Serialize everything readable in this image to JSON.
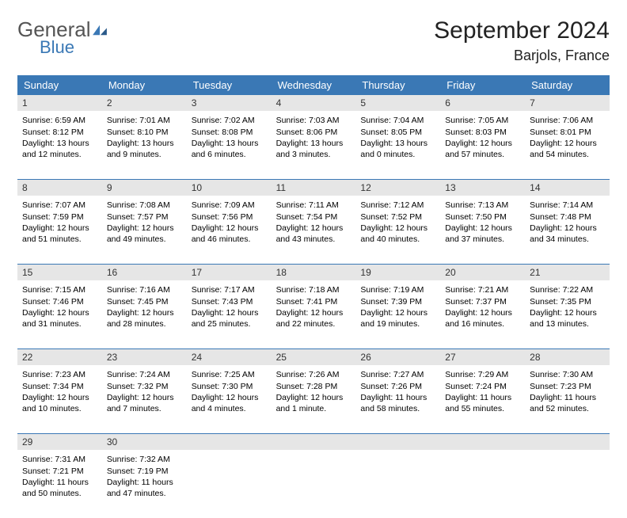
{
  "logo": {
    "general": "General",
    "blue": "Blue"
  },
  "title": "September 2024",
  "location": "Barjols, France",
  "colors": {
    "header_bg": "#3a78b5",
    "header_text": "#ffffff",
    "daynum_bg": "#e6e6e6",
    "week_border": "#3a78b5",
    "page_bg": "#ffffff",
    "text": "#000000"
  },
  "weekdays": [
    "Sunday",
    "Monday",
    "Tuesday",
    "Wednesday",
    "Thursday",
    "Friday",
    "Saturday"
  ],
  "days": [
    {
      "n": "1",
      "sr": "6:59 AM",
      "ss": "8:12 PM",
      "dl": "13 hours and 12 minutes."
    },
    {
      "n": "2",
      "sr": "7:01 AM",
      "ss": "8:10 PM",
      "dl": "13 hours and 9 minutes."
    },
    {
      "n": "3",
      "sr": "7:02 AM",
      "ss": "8:08 PM",
      "dl": "13 hours and 6 minutes."
    },
    {
      "n": "4",
      "sr": "7:03 AM",
      "ss": "8:06 PM",
      "dl": "13 hours and 3 minutes."
    },
    {
      "n": "5",
      "sr": "7:04 AM",
      "ss": "8:05 PM",
      "dl": "13 hours and 0 minutes."
    },
    {
      "n": "6",
      "sr": "7:05 AM",
      "ss": "8:03 PM",
      "dl": "12 hours and 57 minutes."
    },
    {
      "n": "7",
      "sr": "7:06 AM",
      "ss": "8:01 PM",
      "dl": "12 hours and 54 minutes."
    },
    {
      "n": "8",
      "sr": "7:07 AM",
      "ss": "7:59 PM",
      "dl": "12 hours and 51 minutes."
    },
    {
      "n": "9",
      "sr": "7:08 AM",
      "ss": "7:57 PM",
      "dl": "12 hours and 49 minutes."
    },
    {
      "n": "10",
      "sr": "7:09 AM",
      "ss": "7:56 PM",
      "dl": "12 hours and 46 minutes."
    },
    {
      "n": "11",
      "sr": "7:11 AM",
      "ss": "7:54 PM",
      "dl": "12 hours and 43 minutes."
    },
    {
      "n": "12",
      "sr": "7:12 AM",
      "ss": "7:52 PM",
      "dl": "12 hours and 40 minutes."
    },
    {
      "n": "13",
      "sr": "7:13 AM",
      "ss": "7:50 PM",
      "dl": "12 hours and 37 minutes."
    },
    {
      "n": "14",
      "sr": "7:14 AM",
      "ss": "7:48 PM",
      "dl": "12 hours and 34 minutes."
    },
    {
      "n": "15",
      "sr": "7:15 AM",
      "ss": "7:46 PM",
      "dl": "12 hours and 31 minutes."
    },
    {
      "n": "16",
      "sr": "7:16 AM",
      "ss": "7:45 PM",
      "dl": "12 hours and 28 minutes."
    },
    {
      "n": "17",
      "sr": "7:17 AM",
      "ss": "7:43 PM",
      "dl": "12 hours and 25 minutes."
    },
    {
      "n": "18",
      "sr": "7:18 AM",
      "ss": "7:41 PM",
      "dl": "12 hours and 22 minutes."
    },
    {
      "n": "19",
      "sr": "7:19 AM",
      "ss": "7:39 PM",
      "dl": "12 hours and 19 minutes."
    },
    {
      "n": "20",
      "sr": "7:21 AM",
      "ss": "7:37 PM",
      "dl": "12 hours and 16 minutes."
    },
    {
      "n": "21",
      "sr": "7:22 AM",
      "ss": "7:35 PM",
      "dl": "12 hours and 13 minutes."
    },
    {
      "n": "22",
      "sr": "7:23 AM",
      "ss": "7:34 PM",
      "dl": "12 hours and 10 minutes."
    },
    {
      "n": "23",
      "sr": "7:24 AM",
      "ss": "7:32 PM",
      "dl": "12 hours and 7 minutes."
    },
    {
      "n": "24",
      "sr": "7:25 AM",
      "ss": "7:30 PM",
      "dl": "12 hours and 4 minutes."
    },
    {
      "n": "25",
      "sr": "7:26 AM",
      "ss": "7:28 PM",
      "dl": "12 hours and 1 minute."
    },
    {
      "n": "26",
      "sr": "7:27 AM",
      "ss": "7:26 PM",
      "dl": "11 hours and 58 minutes."
    },
    {
      "n": "27",
      "sr": "7:29 AM",
      "ss": "7:24 PM",
      "dl": "11 hours and 55 minutes."
    },
    {
      "n": "28",
      "sr": "7:30 AM",
      "ss": "7:23 PM",
      "dl": "11 hours and 52 minutes."
    },
    {
      "n": "29",
      "sr": "7:31 AM",
      "ss": "7:21 PM",
      "dl": "11 hours and 50 minutes."
    },
    {
      "n": "30",
      "sr": "7:32 AM",
      "ss": "7:19 PM",
      "dl": "11 hours and 47 minutes."
    }
  ],
  "labels": {
    "sunrise": "Sunrise:",
    "sunset": "Sunset:",
    "daylight": "Daylight:"
  },
  "layout": {
    "rows": 5,
    "cols": 7,
    "leading_blanks": 0,
    "trailing_blanks": 5
  }
}
